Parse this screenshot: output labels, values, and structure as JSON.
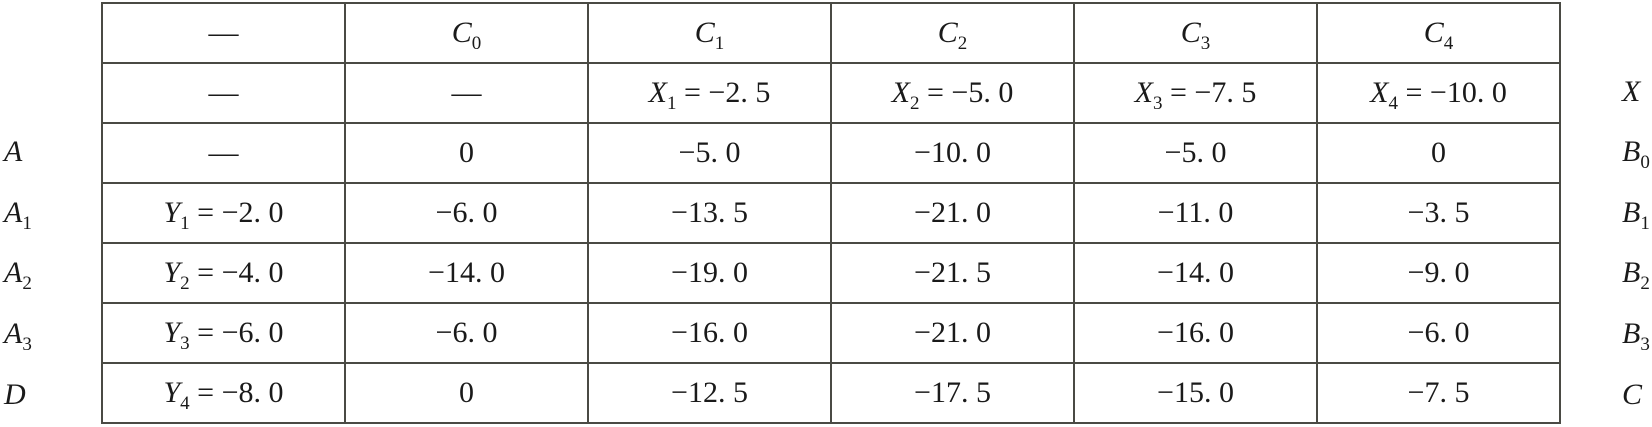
{
  "table": {
    "rows": [
      [
        {
          "t": "—"
        },
        {
          "v": "C",
          "s": "0"
        },
        {
          "v": "C",
          "s": "1"
        },
        {
          "v": "C",
          "s": "2"
        },
        {
          "v": "C",
          "s": "3"
        },
        {
          "v": "C",
          "s": "4"
        }
      ],
      [
        {
          "t": "—"
        },
        {
          "t": "—"
        },
        {
          "v": "X",
          "s": "1",
          "t": " = −2. 5"
        },
        {
          "v": "X",
          "s": "2",
          "t": " = −5. 0"
        },
        {
          "v": "X",
          "s": "3",
          "t": " = −7. 5"
        },
        {
          "v": "X",
          "s": "4",
          "t": " = −10. 0"
        }
      ],
      [
        {
          "t": "—"
        },
        {
          "t": "0"
        },
        {
          "t": "−5. 0"
        },
        {
          "t": "−10. 0"
        },
        {
          "t": "−5. 0"
        },
        {
          "t": "0"
        }
      ],
      [
        {
          "v": "Y",
          "s": "1",
          "t": " = −2. 0"
        },
        {
          "t": "−6. 0"
        },
        {
          "t": "−13. 5"
        },
        {
          "t": "−21. 0"
        },
        {
          "t": "−11. 0"
        },
        {
          "t": "−3. 5"
        }
      ],
      [
        {
          "v": "Y",
          "s": "2",
          "t": " = −4. 0"
        },
        {
          "t": "−14. 0"
        },
        {
          "t": "−19. 0"
        },
        {
          "t": "−21. 5"
        },
        {
          "t": "−14. 0"
        },
        {
          "t": "−9. 0"
        }
      ],
      [
        {
          "v": "Y",
          "s": "3",
          "t": " = −6. 0"
        },
        {
          "t": "−6. 0"
        },
        {
          "t": "−16. 0"
        },
        {
          "t": "−21. 0"
        },
        {
          "t": "−16. 0"
        },
        {
          "t": "−6. 0"
        }
      ],
      [
        {
          "v": "Y",
          "s": "4",
          "t": " = −8. 0"
        },
        {
          "t": "0"
        },
        {
          "t": "−12. 5"
        },
        {
          "t": "−17. 5"
        },
        {
          "t": "−15. 0"
        },
        {
          "t": "−7. 5"
        }
      ]
    ]
  },
  "left_labels": [
    {
      "v": "",
      "s": ""
    },
    {
      "v": "",
      "s": ""
    },
    {
      "v": "A",
      "s": ""
    },
    {
      "v": "A",
      "s": "1"
    },
    {
      "v": "A",
      "s": "2"
    },
    {
      "v": "A",
      "s": "3"
    },
    {
      "v": "D",
      "s": ""
    }
  ],
  "right_labels": [
    {
      "v": "",
      "s": ""
    },
    {
      "v": "X",
      "s": ""
    },
    {
      "v": "B",
      "s": "0"
    },
    {
      "v": "B",
      "s": "1"
    },
    {
      "v": "B",
      "s": "2"
    },
    {
      "v": "B",
      "s": "3"
    },
    {
      "v": "C",
      "s": ""
    }
  ]
}
